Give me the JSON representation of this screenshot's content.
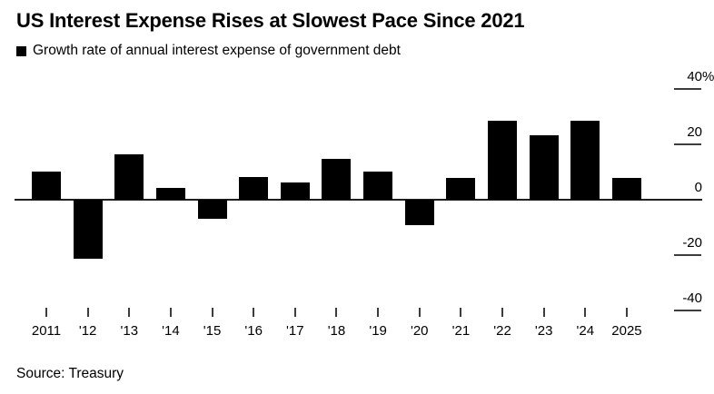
{
  "header": {
    "title": "US Interest Expense Rises at Slowest Pace Since 2021",
    "legend_label": "Growth rate of annual interest expense of government debt"
  },
  "footer": {
    "source": "Source: Treasury"
  },
  "colors": {
    "background": "#ffffff",
    "bar": "#000000",
    "zero_line": "#1f1f1f",
    "tick": "#3d3d3d",
    "text": "#000000"
  },
  "chart_data": {
    "type": "bar",
    "title": "US Interest Expense Rises at Slowest Pace Since 2021",
    "legend": [
      "Growth rate of annual interest expense of government debt"
    ],
    "legend_position": "top-left",
    "categories": [
      "2011",
      "'12",
      "'13",
      "'14",
      "'15",
      "'16",
      "'17",
      "'18",
      "'19",
      "'20",
      "'21",
      "'22",
      "'23",
      "'24",
      "2025"
    ],
    "values": [
      10.2,
      -21.2,
      16.4,
      4.1,
      -7.0,
      8.2,
      6.2,
      14.6,
      10.2,
      -9.2,
      8.0,
      28.4,
      23.2,
      28.6,
      8.0
    ],
    "unit": "%",
    "xlabel": "",
    "ylabel": "",
    "ylim": [
      -40,
      40
    ],
    "yticks": [
      40,
      20,
      0,
      -20,
      -40
    ],
    "ytick_labels": [
      "40%",
      "20",
      "0",
      "-20",
      "-40"
    ],
    "grid": false,
    "yaxis_side": "right",
    "source": "Source: Treasury"
  }
}
